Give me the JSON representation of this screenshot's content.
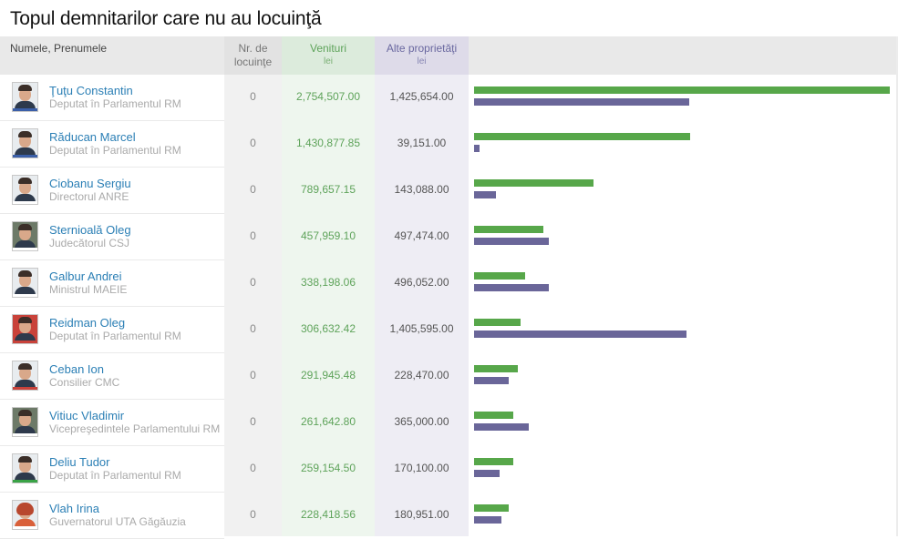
{
  "title": "Topul demnitarilor care nu au locuinţă",
  "columns": {
    "name": "Numele, Prenumele",
    "count_line1": "Nr. de",
    "count_line2": "locuinţe",
    "income": "Venituri",
    "income_unit": "lei",
    "property": "Alte proprietăţi",
    "property_unit": "lei"
  },
  "colors": {
    "income": "#57a74a",
    "property": "#6a6699",
    "link": "#2b7fb5"
  },
  "rows": [
    {
      "name": "Ţuţu Constantin",
      "role": "Deputat în Parlamentul RM",
      "count": "0",
      "income": "2,754,507.00",
      "income_value": 2754507.0,
      "property": "1,425,654.00",
      "property_value": 1425654.0,
      "avatar": "person-photo"
    },
    {
      "name": "Răducan Marcel",
      "role": "Deputat în Parlamentul RM",
      "count": "0",
      "income": "1,430,877.85",
      "income_value": 1430877.85,
      "property": "39,151.00",
      "property_value": 39151.0,
      "avatar": "person-photo"
    },
    {
      "name": "Ciobanu Sergiu",
      "role": "Directorul ANRE",
      "count": "0",
      "income": "789,657.15",
      "income_value": 789657.15,
      "property": "143,088.00",
      "property_value": 143088.0,
      "avatar": "person-photo"
    },
    {
      "name": "Sternioală Oleg",
      "role": "Judecătorul CSJ",
      "count": "0",
      "income": "457,959.10",
      "income_value": 457959.1,
      "property": "497,474.00",
      "property_value": 497474.0,
      "avatar": "person-photo"
    },
    {
      "name": "Galbur Andrei",
      "role": "Ministrul MAEIE",
      "count": "0",
      "income": "338,198.06",
      "income_value": 338198.06,
      "property": "496,052.00",
      "property_value": 496052.0,
      "avatar": "person-photo"
    },
    {
      "name": "Reidman Oleg",
      "role": "Deputat în Parlamentul RM",
      "count": "0",
      "income": "306,632.42",
      "income_value": 306632.42,
      "property": "1,405,595.00",
      "property_value": 1405595.0,
      "avatar": "person-photo"
    },
    {
      "name": "Ceban Ion",
      "role": "Consilier CMC",
      "count": "0",
      "income": "291,945.48",
      "income_value": 291945.48,
      "property": "228,470.00",
      "property_value": 228470.0,
      "avatar": "person-photo"
    },
    {
      "name": "Vitiuc Vladimir",
      "role": "Vicepreşedintele Parlamentului RM",
      "count": "0",
      "income": "261,642.80",
      "income_value": 261642.8,
      "property": "365,000.00",
      "property_value": 365000.0,
      "avatar": "person-photo"
    },
    {
      "name": "Deliu Tudor",
      "role": "Deputat în Parlamentul RM",
      "count": "0",
      "income": "259,154.50",
      "income_value": 259154.5,
      "property": "170,100.00",
      "property_value": 170100.0,
      "avatar": "person-photo"
    },
    {
      "name": "Vlah Irina",
      "role": "Guvernatorul UTA Găgăuzia",
      "count": "0",
      "income": "228,418.56",
      "income_value": 228418.56,
      "property": "180,951.00",
      "property_value": 180951.0,
      "avatar": "person-photo"
    }
  ]
}
